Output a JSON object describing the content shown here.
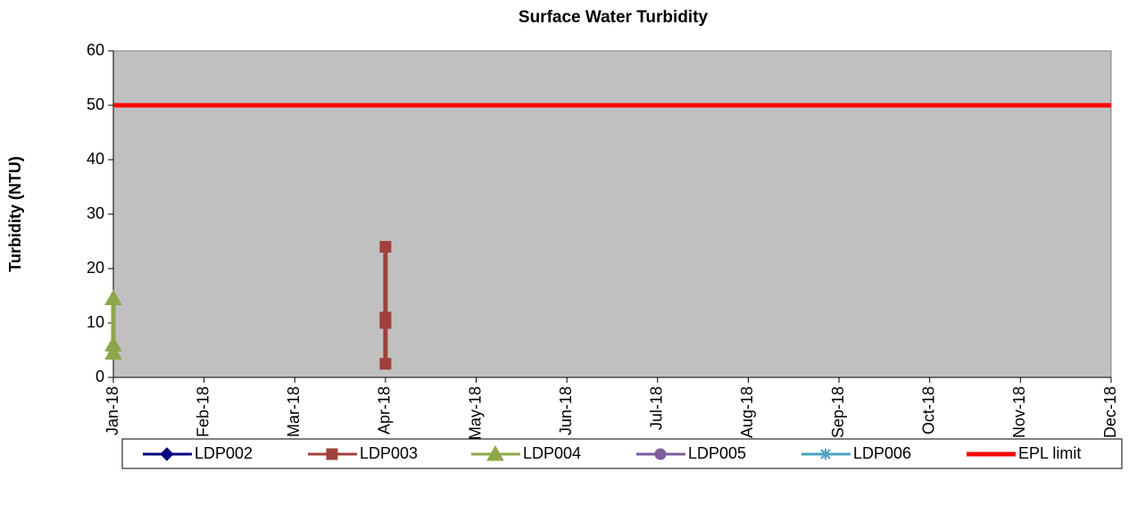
{
  "chart_data": {
    "type": "line",
    "title": "Surface Water Turbidity",
    "y_label": "Turbidity (NTU)",
    "categories": [
      "Jan-18",
      "Feb-18",
      "Mar-18",
      "Apr-18",
      "May-18",
      "Jun-18",
      "Jul-18",
      "Aug-18",
      "Sep-18",
      "Oct-18",
      "Nov-18",
      "Dec-18"
    ],
    "ylim": [
      0,
      60
    ],
    "yticks": [
      0,
      10,
      20,
      30,
      40,
      50,
      60
    ],
    "grid": false,
    "legend": "bottom",
    "series": [
      {
        "name": "LDP002",
        "color": "#000080",
        "marker": "diamond",
        "x": [],
        "values": []
      },
      {
        "name": "LDP003",
        "color": "#a0413c",
        "marker": "square",
        "x": [
          "Apr-18",
          "Apr-18",
          "Apr-18",
          "Apr-18"
        ],
        "values": [
          24,
          11,
          10,
          2.5
        ]
      },
      {
        "name": "LDP004",
        "color": "#8ea64a",
        "marker": "triangle",
        "x": [
          "Jan-18",
          "Jan-18",
          "Jan-18"
        ],
        "values": [
          14.5,
          6,
          4.5
        ]
      },
      {
        "name": "LDP005",
        "color": "#7b5c9c",
        "marker": "circle",
        "x": [],
        "values": []
      },
      {
        "name": "LDP006",
        "color": "#4aa3c0",
        "marker": "star",
        "x": [],
        "values": []
      },
      {
        "name": "EPL limit",
        "color": "#ff0000",
        "marker": "none",
        "x": [
          "Jan-18",
          "Dec-18"
        ],
        "values": [
          50,
          50
        ]
      }
    ]
  }
}
